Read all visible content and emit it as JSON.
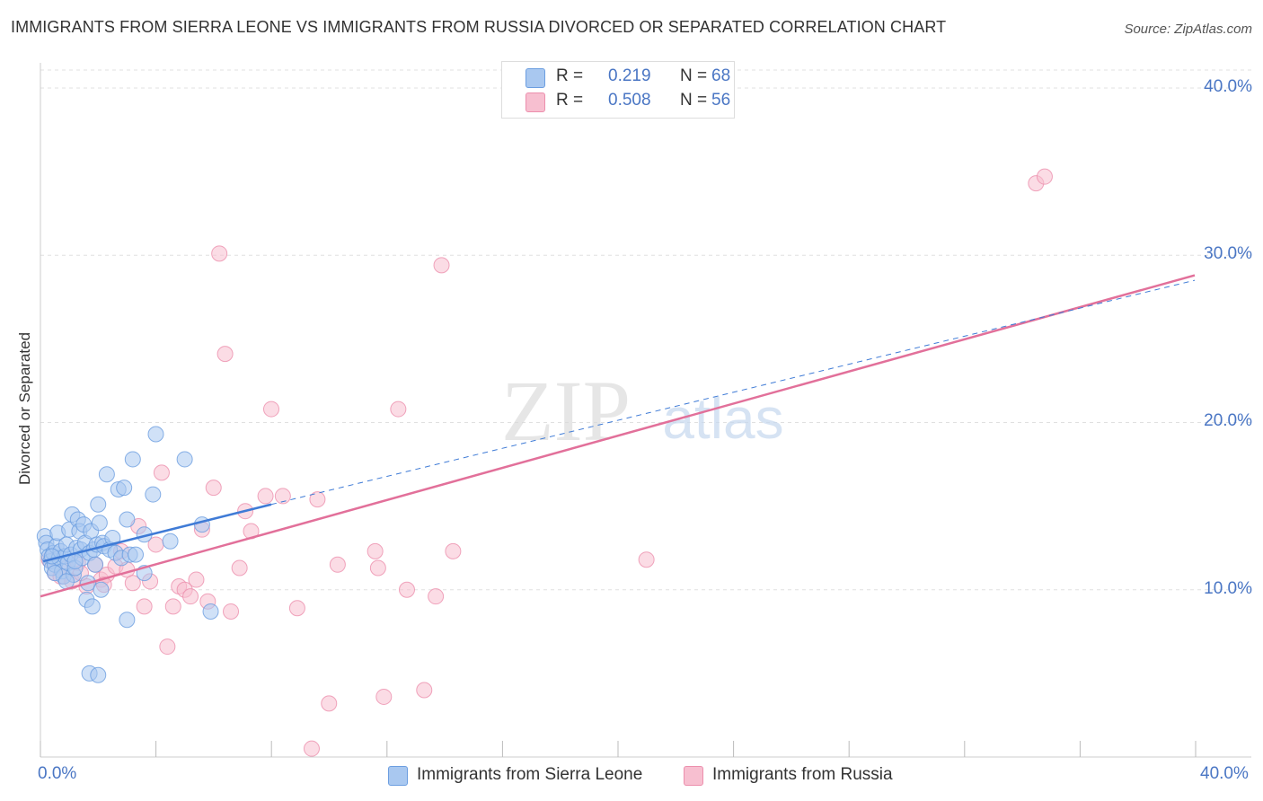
{
  "title": "IMMIGRANTS FROM SIERRA LEONE VS IMMIGRANTS FROM RUSSIA DIVORCED OR SEPARATED CORRELATION CHART",
  "source": "Source: ZipAtlas.com",
  "watermark": {
    "zip": "ZIP",
    "atlas": "atlas"
  },
  "colors": {
    "blue_fill": "#a9c8f0",
    "blue_stroke": "#6c9ee0",
    "blue_line": "#3f7bd6",
    "pink_fill": "#f7bfd0",
    "pink_stroke": "#ec8fad",
    "pink_line": "#e2709a",
    "grid": "#e0e0e0",
    "axis_label": "#4a76c4"
  },
  "legend": {
    "series": [
      {
        "r_label": "R =",
        "r_value": "0.219",
        "n_label": "N =",
        "n_value": "68"
      },
      {
        "r_label": "R =",
        "r_value": "0.508",
        "n_label": "N =",
        "n_value": "56"
      }
    ]
  },
  "bottom_legend": [
    "Immigrants from Sierra Leone",
    "Immigrants from Russia"
  ],
  "chart_data": {
    "type": "scatter",
    "title": "IMMIGRANTS FROM SIERRA LEONE VS IMMIGRANTS FROM RUSSIA DIVORCED OR SEPARATED CORRELATION CHART",
    "xlabel": "",
    "ylabel": "Divorced or Separated",
    "xlim": [
      0,
      40
    ],
    "ylim": [
      0,
      41.5
    ],
    "x_tick_labels": [
      "0.0%",
      "40.0%"
    ],
    "y_ticks": [
      10,
      20,
      30,
      40
    ],
    "y_tick_labels": [
      "10.0%",
      "20.0%",
      "30.0%",
      "40.0%"
    ],
    "grid": true,
    "series": [
      {
        "name": "Immigrants from Sierra Leone",
        "color": "#a9c8f0",
        "r": 0.219,
        "n": 68,
        "trend": {
          "solid": [
            [
              0.1,
              11.7
            ],
            [
              8.0,
              15.1
            ]
          ],
          "dashed": [
            [
              8.0,
              15.1
            ],
            [
              40.0,
              28.5
            ]
          ]
        },
        "points": [
          [
            0.15,
            13.2
          ],
          [
            0.2,
            12.8
          ],
          [
            0.25,
            12.4
          ],
          [
            0.3,
            12.0
          ],
          [
            0.35,
            11.7
          ],
          [
            0.4,
            11.3
          ],
          [
            0.45,
            12.2
          ],
          [
            0.5,
            11.5
          ],
          [
            0.55,
            12.6
          ],
          [
            0.6,
            13.4
          ],
          [
            0.65,
            11.9
          ],
          [
            0.7,
            12.3
          ],
          [
            0.75,
            11.1
          ],
          [
            0.8,
            10.8
          ],
          [
            0.85,
            12.0
          ],
          [
            0.9,
            12.7
          ],
          [
            0.95,
            11.6
          ],
          [
            1.0,
            13.6
          ],
          [
            1.05,
            12.1
          ],
          [
            1.1,
            14.5
          ],
          [
            1.15,
            10.9
          ],
          [
            1.2,
            11.3
          ],
          [
            1.25,
            12.5
          ],
          [
            1.3,
            14.2
          ],
          [
            1.35,
            13.5
          ],
          [
            1.4,
            12.4
          ],
          [
            1.45,
            11.9
          ],
          [
            1.5,
            13.9
          ],
          [
            1.55,
            12.8
          ],
          [
            1.6,
            9.4
          ],
          [
            1.65,
            10.4
          ],
          [
            1.7,
            12.2
          ],
          [
            1.75,
            13.5
          ],
          [
            1.8,
            9.0
          ],
          [
            1.85,
            12.4
          ],
          [
            1.9,
            11.5
          ],
          [
            1.95,
            12.7
          ],
          [
            2.0,
            15.1
          ],
          [
            2.05,
            14.0
          ],
          [
            2.1,
            10.0
          ],
          [
            2.15,
            12.8
          ],
          [
            2.2,
            12.6
          ],
          [
            2.3,
            16.9
          ],
          [
            2.4,
            12.4
          ],
          [
            2.5,
            13.1
          ],
          [
            2.6,
            12.2
          ],
          [
            2.7,
            16.0
          ],
          [
            2.8,
            11.9
          ],
          [
            2.9,
            16.1
          ],
          [
            3.0,
            14.2
          ],
          [
            3.1,
            12.1
          ],
          [
            3.2,
            17.8
          ],
          [
            3.3,
            12.1
          ],
          [
            3.6,
            13.3
          ],
          [
            3.9,
            15.7
          ],
          [
            4.0,
            19.3
          ],
          [
            4.5,
            12.9
          ],
          [
            5.0,
            17.8
          ],
          [
            5.6,
            13.9
          ],
          [
            0.5,
            11.0
          ],
          [
            0.9,
            10.5
          ],
          [
            1.7,
            5.0
          ],
          [
            2.0,
            4.9
          ],
          [
            3.0,
            8.2
          ],
          [
            3.6,
            11.0
          ],
          [
            5.9,
            8.7
          ],
          [
            0.4,
            12.0
          ],
          [
            1.2,
            11.7
          ]
        ]
      },
      {
        "name": "Immigrants from Russia",
        "color": "#f7bfd0",
        "r": 0.508,
        "n": 56,
        "trend": {
          "solid": [
            [
              0.0,
              9.6
            ],
            [
              40.0,
              28.8
            ]
          ]
        },
        "points": [
          [
            0.3,
            11.8
          ],
          [
            0.5,
            11.0
          ],
          [
            0.7,
            10.8
          ],
          [
            0.9,
            11.3
          ],
          [
            1.1,
            10.5
          ],
          [
            1.3,
            11.6
          ],
          [
            1.6,
            10.2
          ],
          [
            1.9,
            11.5
          ],
          [
            2.1,
            10.6
          ],
          [
            2.3,
            10.9
          ],
          [
            2.6,
            11.4
          ],
          [
            2.8,
            12.3
          ],
          [
            3.0,
            11.2
          ],
          [
            3.2,
            10.4
          ],
          [
            3.4,
            13.8
          ],
          [
            3.6,
            9.0
          ],
          [
            3.8,
            10.5
          ],
          [
            4.0,
            12.7
          ],
          [
            4.2,
            17.0
          ],
          [
            4.4,
            6.6
          ],
          [
            4.6,
            9.0
          ],
          [
            4.8,
            10.2
          ],
          [
            5.0,
            10.0
          ],
          [
            5.2,
            9.6
          ],
          [
            5.4,
            10.6
          ],
          [
            5.6,
            13.6
          ],
          [
            5.8,
            9.3
          ],
          [
            6.0,
            16.1
          ],
          [
            6.2,
            30.1
          ],
          [
            6.4,
            24.1
          ],
          [
            6.6,
            8.7
          ],
          [
            6.9,
            11.3
          ],
          [
            7.1,
            14.7
          ],
          [
            7.3,
            13.5
          ],
          [
            7.8,
            15.6
          ],
          [
            8.0,
            20.8
          ],
          [
            8.4,
            15.6
          ],
          [
            8.9,
            8.9
          ],
          [
            9.4,
            0.5
          ],
          [
            9.6,
            15.4
          ],
          [
            10.0,
            3.2
          ],
          [
            10.3,
            11.5
          ],
          [
            11.6,
            12.3
          ],
          [
            11.7,
            11.3
          ],
          [
            11.9,
            3.6
          ],
          [
            12.4,
            20.8
          ],
          [
            12.7,
            10.0
          ],
          [
            13.3,
            4.0
          ],
          [
            13.7,
            9.6
          ],
          [
            13.9,
            29.4
          ],
          [
            14.3,
            12.3
          ],
          [
            21.0,
            11.8
          ],
          [
            34.5,
            34.3
          ],
          [
            34.8,
            34.7
          ],
          [
            2.2,
            10.3
          ],
          [
            1.4,
            11.0
          ]
        ]
      }
    ]
  }
}
